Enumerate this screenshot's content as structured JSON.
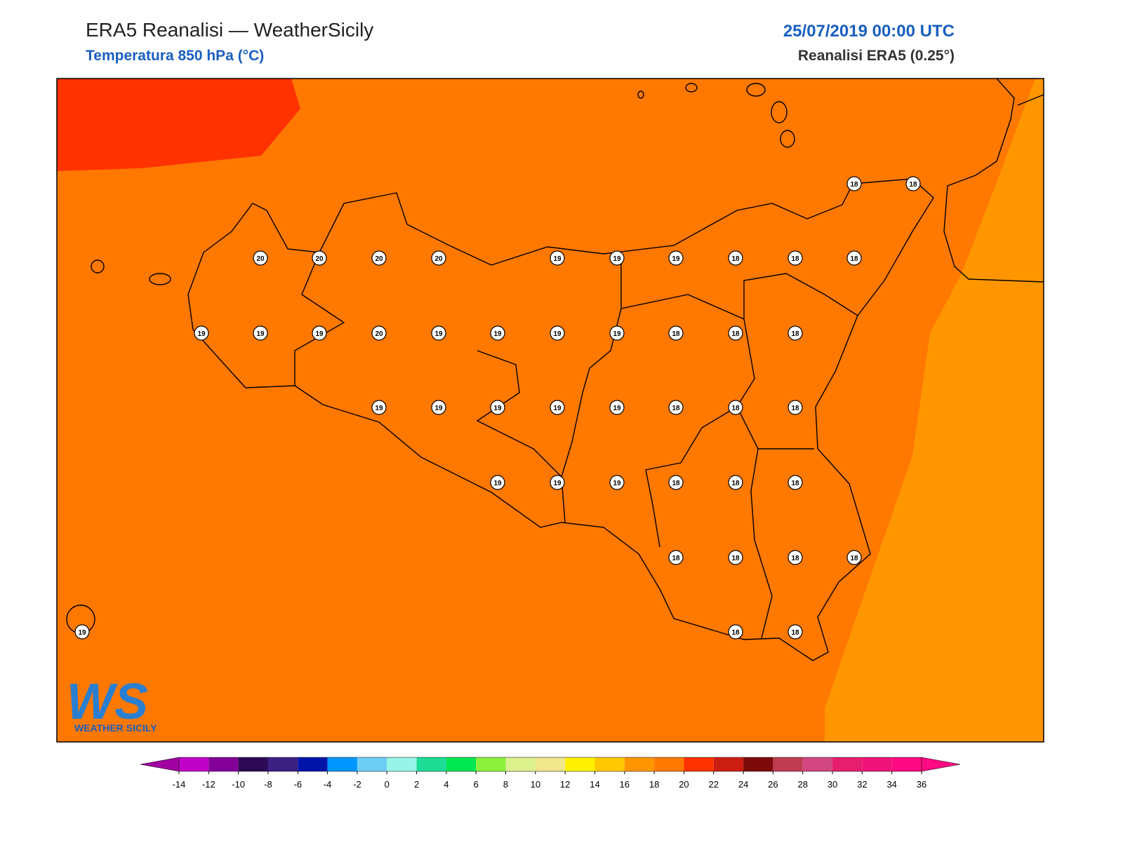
{
  "header": {
    "title": "ERA5 Reanalisi — WeatherSicily",
    "subtitle": "Temperatura 850 hPa (°C)",
    "date": "25/07/2019 00:00 UTC",
    "source": "Reanalisi ERA5 (0.25°)"
  },
  "stations": {
    "values": [
      18,
      18,
      20,
      20,
      20,
      20,
      19,
      19,
      19,
      18,
      18,
      18,
      19,
      19,
      19,
      20,
      19,
      19,
      19,
      19,
      18,
      18,
      18,
      19,
      19,
      19,
      19,
      19,
      18,
      18,
      18,
      19,
      19,
      19,
      18,
      18,
      18,
      18,
      18,
      18,
      18,
      19,
      18,
      18
    ]
  },
  "colorbar": {
    "ticks": [
      -14,
      -12,
      -10,
      -8,
      -6,
      -4,
      -2,
      0,
      2,
      4,
      6,
      8,
      10,
      12,
      14,
      16,
      18,
      20,
      22,
      24,
      26,
      28,
      30,
      32,
      34,
      36
    ],
    "colors": [
      "#c000c8",
      "#820096",
      "#2d0a55",
      "#3c2082",
      "#0014aa",
      "#0096ff",
      "#6ecdf5",
      "#96f5e6",
      "#1edc96",
      "#00e650",
      "#8cf03c",
      "#dcf08c",
      "#f0e68c",
      "#fff000",
      "#ffc800",
      "#ff9600",
      "#ff7800",
      "#ff3200",
      "#cd1e14",
      "#7d0a0a",
      "#be3c50",
      "#d24682",
      "#e61e6e",
      "#f01478",
      "#ff0a82"
    ],
    "under_color": "#a000a0",
    "over_color": "#ff0a82"
  },
  "logo": {
    "mark": "WS",
    "text": "WEATHER SICILY"
  }
}
